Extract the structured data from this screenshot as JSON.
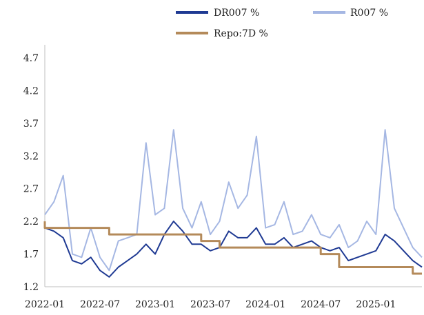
{
  "chart_data": {
    "type": "line",
    "title": "",
    "xlabel": "",
    "ylabel": "",
    "x_range": [
      "2022-01",
      "2025-06"
    ],
    "ylim": [
      1.2,
      4.9
    ],
    "y_ticks": [
      "1.2",
      "1.7",
      "2.2",
      "2.7",
      "3.2",
      "3.7",
      "4.2",
      "4.7"
    ],
    "x_ticks": [
      "2022-01",
      "2022-07",
      "2023-01",
      "2023-07",
      "2024-01",
      "2024-07",
      "2025-01"
    ],
    "grid": false,
    "legend_position": "top",
    "series": [
      {
        "name": "DR007 %",
        "color": "#1f3a93",
        "points": [
          [
            "2022-01",
            2.1
          ],
          [
            "2022-02",
            2.05
          ],
          [
            "2022-03",
            1.95
          ],
          [
            "2022-04",
            1.6
          ],
          [
            "2022-05",
            1.55
          ],
          [
            "2022-06",
            1.65
          ],
          [
            "2022-07",
            1.45
          ],
          [
            "2022-08",
            1.35
          ],
          [
            "2022-09",
            1.5
          ],
          [
            "2022-10",
            1.6
          ],
          [
            "2022-11",
            1.7
          ],
          [
            "2022-12",
            1.85
          ],
          [
            "2023-01",
            1.7
          ],
          [
            "2023-02",
            2.0
          ],
          [
            "2023-03",
            2.2
          ],
          [
            "2023-04",
            2.05
          ],
          [
            "2023-05",
            1.85
          ],
          [
            "2023-06",
            1.85
          ],
          [
            "2023-07",
            1.75
          ],
          [
            "2023-08",
            1.8
          ],
          [
            "2023-09",
            2.05
          ],
          [
            "2023-10",
            1.95
          ],
          [
            "2023-11",
            1.95
          ],
          [
            "2023-12",
            2.1
          ],
          [
            "2024-01",
            1.85
          ],
          [
            "2024-02",
            1.85
          ],
          [
            "2024-03",
            1.95
          ],
          [
            "2024-04",
            1.8
          ],
          [
            "2024-05",
            1.85
          ],
          [
            "2024-06",
            1.9
          ],
          [
            "2024-07",
            1.8
          ],
          [
            "2024-08",
            1.75
          ],
          [
            "2024-09",
            1.8
          ],
          [
            "2024-10",
            1.6
          ],
          [
            "2024-11",
            1.65
          ],
          [
            "2024-12",
            1.7
          ],
          [
            "2025-01",
            1.75
          ],
          [
            "2025-02",
            2.0
          ],
          [
            "2025-03",
            1.9
          ],
          [
            "2025-04",
            1.75
          ],
          [
            "2025-05",
            1.6
          ],
          [
            "2025-06",
            1.5
          ]
        ]
      },
      {
        "name": "R007 %",
        "color": "#a5b7e3",
        "points": [
          [
            "2022-01",
            2.3
          ],
          [
            "2022-02",
            2.5
          ],
          [
            "2022-03",
            2.9
          ],
          [
            "2022-04",
            1.7
          ],
          [
            "2022-05",
            1.65
          ],
          [
            "2022-06",
            2.1
          ],
          [
            "2022-07",
            1.65
          ],
          [
            "2022-08",
            1.45
          ],
          [
            "2022-09",
            1.9
          ],
          [
            "2022-10",
            1.95
          ],
          [
            "2022-11",
            2.0
          ],
          [
            "2022-12",
            3.4
          ],
          [
            "2023-01",
            2.3
          ],
          [
            "2023-02",
            2.4
          ],
          [
            "2023-03",
            3.6
          ],
          [
            "2023-04",
            2.4
          ],
          [
            "2023-05",
            2.1
          ],
          [
            "2023-06",
            2.5
          ],
          [
            "2023-07",
            2.0
          ],
          [
            "2023-08",
            2.2
          ],
          [
            "2023-09",
            2.8
          ],
          [
            "2023-10",
            2.4
          ],
          [
            "2023-11",
            2.6
          ],
          [
            "2023-12",
            3.5
          ],
          [
            "2024-01",
            2.1
          ],
          [
            "2024-02",
            2.15
          ],
          [
            "2024-03",
            2.5
          ],
          [
            "2024-04",
            2.0
          ],
          [
            "2024-05",
            2.05
          ],
          [
            "2024-06",
            2.3
          ],
          [
            "2024-07",
            2.0
          ],
          [
            "2024-08",
            1.95
          ],
          [
            "2024-09",
            2.15
          ],
          [
            "2024-10",
            1.8
          ],
          [
            "2024-11",
            1.9
          ],
          [
            "2024-12",
            2.2
          ],
          [
            "2025-01",
            2.0
          ],
          [
            "2025-02",
            3.6
          ],
          [
            "2025-03",
            2.4
          ],
          [
            "2025-04",
            2.1
          ],
          [
            "2025-05",
            1.8
          ],
          [
            "2025-06",
            1.65
          ]
        ]
      },
      {
        "name": "Repo:7D %",
        "color": "#b48a5a",
        "points": [
          [
            "2022-01",
            2.2
          ],
          [
            "2022-01",
            2.1
          ],
          [
            "2022-08",
            2.1
          ],
          [
            "2022-08",
            2.0
          ],
          [
            "2023-06",
            2.0
          ],
          [
            "2023-06",
            1.9
          ],
          [
            "2023-08",
            1.9
          ],
          [
            "2023-08",
            1.8
          ],
          [
            "2024-07",
            1.8
          ],
          [
            "2024-07",
            1.7
          ],
          [
            "2024-09",
            1.7
          ],
          [
            "2024-09",
            1.5
          ],
          [
            "2025-05",
            1.5
          ],
          [
            "2025-05",
            1.4
          ],
          [
            "2025-06",
            1.4
          ]
        ]
      }
    ]
  }
}
